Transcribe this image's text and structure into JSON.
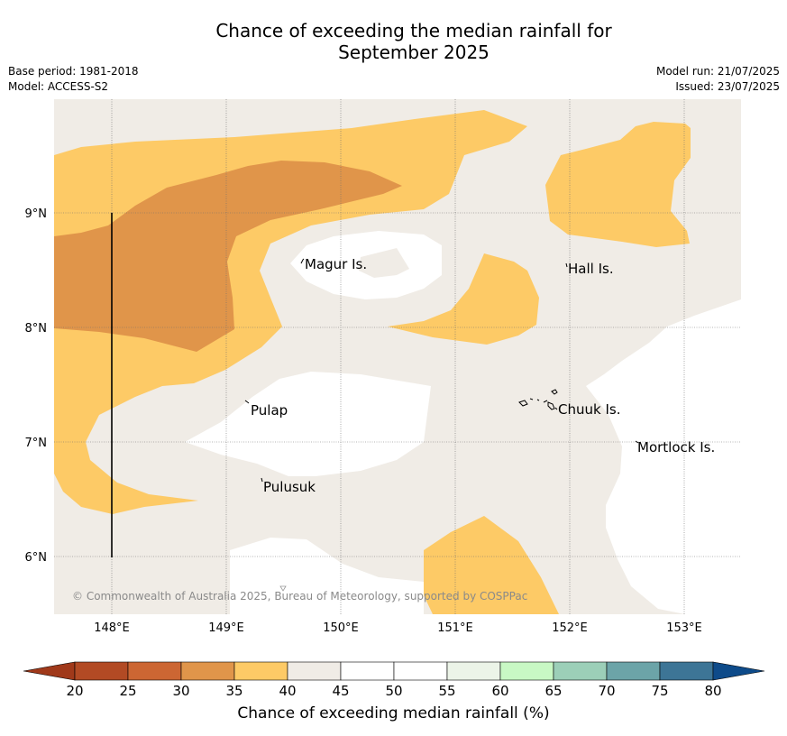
{
  "title_line1": "Chance of exceeding the median rainfall for",
  "title_line2": "September 2025",
  "meta_left": [
    "Base period: 1981-2018",
    "Model: ACCESS-S2"
  ],
  "meta_right": [
    "Model run: 21/07/2025",
    "Issued: 23/07/2025"
  ],
  "lon_ticks": [
    "148°E",
    "149°E",
    "150°E",
    "151°E",
    "152°E",
    "153°E"
  ],
  "lat_ticks": [
    "9°N",
    "8°N",
    "7°N",
    "6°N"
  ],
  "places": [
    "Magur Is.",
    "Hall Is.",
    "Pulap",
    "Chuuk Is.",
    "Mortlock Is.",
    "Pulusuk"
  ],
  "copyright": "© Commonwealth of Australia 2025, Bureau of Meteorology, supported by COSPPac",
  "colorbar": {
    "title": "Chance of exceeding median rainfall (%)",
    "ticks": [
      "20",
      "25",
      "30",
      "35",
      "40",
      "45",
      "50",
      "55",
      "60",
      "65",
      "70",
      "75",
      "80"
    ],
    "colors": [
      "#b24a24",
      "#cc6633",
      "#e0954a",
      "#fdca66",
      "#f0ece6",
      "#ffffff",
      "#ffffff",
      "#ecf4e8",
      "#c8f8c4",
      "#9ccfb8",
      "#6ca4a8",
      "#3d7596"
    ],
    "under_color": "#a0391a",
    "over_color": "#0e4b8a"
  },
  "legend_colors": {
    "c_30_35": "#e0954a",
    "c_35_40": "#fdca66",
    "c_40_45": "#f0ece6",
    "c_45_55": "#ffffff"
  }
}
